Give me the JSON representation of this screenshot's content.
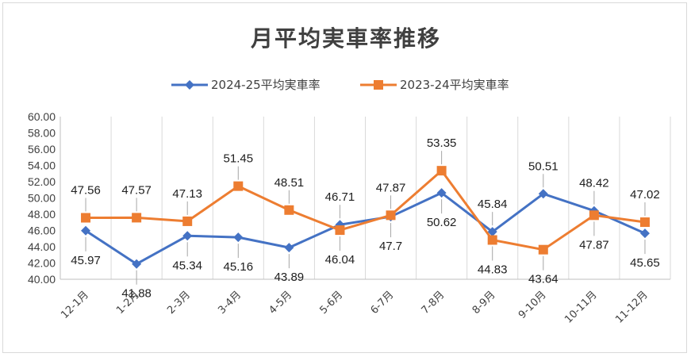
{
  "chart_data": {
    "type": "line",
    "title": "月平均実車率推移",
    "categories": [
      "12-1月",
      "1-2月",
      "2-3月",
      "3-4月",
      "4-5月",
      "5-6月",
      "6-7月",
      "7-8月",
      "8-9月",
      "9-10月",
      "10-11月",
      "11-12月"
    ],
    "series": [
      {
        "name": "2024-25平均実車率",
        "color": "#4472c4",
        "marker": "diamond",
        "values": [
          45.97,
          41.88,
          45.34,
          45.16,
          43.89,
          46.71,
          47.7,
          50.62,
          45.84,
          50.51,
          48.42,
          45.65
        ]
      },
      {
        "name": "2023-24平均実車率",
        "color": "#ed7d31",
        "marker": "square",
        "values": [
          47.56,
          47.57,
          47.13,
          51.45,
          48.51,
          46.04,
          47.87,
          53.35,
          44.83,
          43.64,
          47.87,
          47.02
        ]
      }
    ],
    "ylim": [
      40,
      60
    ],
    "yticks": [
      "40.00",
      "42.00",
      "44.00",
      "46.00",
      "48.00",
      "50.00",
      "52.00",
      "54.00",
      "56.00",
      "58.00",
      "60.00"
    ],
    "grid": "vertical category gridlines",
    "legend": "top",
    "data_labels": [
      {
        "series": 0,
        "index": 0,
        "text": "45.97",
        "side": "below"
      },
      {
        "series": 0,
        "index": 1,
        "text": "41.88",
        "side": "below"
      },
      {
        "series": 0,
        "index": 2,
        "text": "45.34",
        "side": "below"
      },
      {
        "series": 0,
        "index": 3,
        "text": "45.16",
        "side": "below"
      },
      {
        "series": 0,
        "index": 4,
        "text": "43.89",
        "side": "below"
      },
      {
        "series": 0,
        "index": 5,
        "text": "46.71",
        "side": "above"
      },
      {
        "series": 0,
        "index": 6,
        "text": "47.7",
        "side": "below"
      },
      {
        "series": 0,
        "index": 7,
        "text": "50.62",
        "side": "below"
      },
      {
        "series": 0,
        "index": 8,
        "text": "45.84",
        "side": "above"
      },
      {
        "series": 0,
        "index": 9,
        "text": "50.51",
        "side": "above"
      },
      {
        "series": 0,
        "index": 10,
        "text": "48.42",
        "side": "above"
      },
      {
        "series": 0,
        "index": 11,
        "text": "45.65",
        "side": "below"
      },
      {
        "series": 1,
        "index": 0,
        "text": "47.56",
        "side": "above"
      },
      {
        "series": 1,
        "index": 1,
        "text": "47.57",
        "side": "above"
      },
      {
        "series": 1,
        "index": 2,
        "text": "47.13",
        "side": "above"
      },
      {
        "series": 1,
        "index": 3,
        "text": "51.45",
        "side": "above"
      },
      {
        "series": 1,
        "index": 4,
        "text": "48.51",
        "side": "above"
      },
      {
        "series": 1,
        "index": 5,
        "text": "46.04",
        "side": "below"
      },
      {
        "series": 1,
        "index": 6,
        "text": "47.87",
        "side": "above"
      },
      {
        "series": 1,
        "index": 7,
        "text": "53.35",
        "side": "above"
      },
      {
        "series": 1,
        "index": 8,
        "text": "44.83",
        "side": "below"
      },
      {
        "series": 1,
        "index": 9,
        "text": "43.64",
        "side": "below"
      },
      {
        "series": 1,
        "index": 10,
        "text": "47.87",
        "side": "below"
      },
      {
        "series": 1,
        "index": 11,
        "text": "47.02",
        "side": "above"
      }
    ]
  }
}
